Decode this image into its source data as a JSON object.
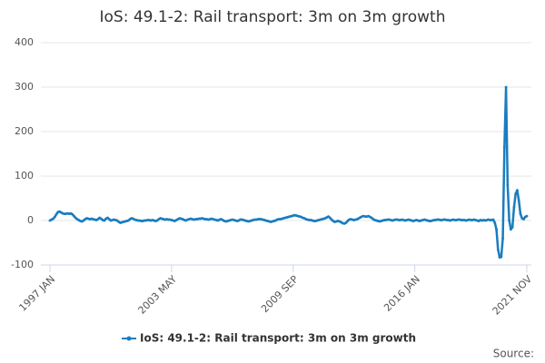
{
  "chart_data": {
    "type": "line",
    "title": "IoS: 49.1-2: Rail transport: 3m on 3m growth",
    "source": "Source:",
    "categories": [
      "1997 JAN",
      null,
      null,
      null,
      null,
      null,
      null,
      null,
      null,
      null,
      null,
      null,
      null,
      null,
      null,
      null,
      null,
      null,
      null,
      null,
      null,
      null,
      null,
      null,
      null,
      null,
      null,
      null,
      null,
      null,
      null,
      null,
      null,
      null,
      null,
      null,
      null,
      null,
      null,
      null,
      null,
      null,
      null,
      null,
      null,
      null,
      null,
      null,
      null,
      null,
      null,
      null,
      null,
      null,
      null,
      null,
      null,
      null,
      null,
      null,
      null,
      null,
      null,
      null,
      null,
      null,
      null,
      null,
      null,
      null,
      null,
      null,
      null,
      null,
      null,
      null,
      "2003 MAY",
      null,
      null,
      null,
      null,
      null,
      null,
      null,
      null,
      null,
      null,
      null,
      null,
      null,
      null,
      null,
      null,
      null,
      null,
      null,
      null,
      null,
      null,
      null,
      null,
      null,
      null,
      null,
      null,
      null,
      null,
      null,
      null,
      null,
      null,
      null,
      null,
      null,
      null,
      null,
      null,
      null,
      null,
      null,
      null,
      null,
      null,
      null,
      null,
      null,
      null,
      null,
      null,
      null,
      null,
      null,
      null,
      null,
      null,
      null,
      null,
      null,
      null,
      null,
      null,
      null,
      null,
      null,
      null,
      null,
      null,
      null,
      null,
      null,
      null,
      null,
      "2009 SEP",
      null,
      null,
      null,
      null,
      null,
      null,
      null,
      null,
      null,
      null,
      null,
      null,
      null,
      null,
      null,
      null,
      null,
      null,
      null,
      null,
      null,
      null,
      null,
      null,
      null,
      null,
      null,
      null,
      null,
      null,
      null,
      null,
      null,
      null,
      null,
      null,
      null,
      null,
      null,
      null,
      null,
      null,
      null,
      null,
      null,
      null,
      null,
      null,
      null,
      null,
      null,
      null,
      null,
      null,
      null,
      null,
      null,
      null,
      null,
      null,
      null,
      null,
      null,
      null,
      null,
      null,
      null,
      null,
      null,
      null,
      null,
      null,
      null,
      null,
      null,
      "2016 JAN",
      null,
      null,
      null,
      null,
      null,
      null,
      null,
      null,
      null,
      null,
      null,
      null,
      null,
      null,
      null,
      null,
      null,
      null,
      null,
      null,
      null,
      null,
      null,
      null,
      null,
      null,
      null,
      null,
      null,
      null,
      null,
      null,
      null,
      null,
      null,
      null,
      null,
      null,
      null,
      null,
      null,
      null,
      null,
      null,
      null,
      null,
      null,
      null,
      null,
      null,
      null,
      null,
      null,
      null,
      null,
      null,
      null,
      null,
      null,
      null,
      null,
      null,
      null,
      null,
      null,
      null,
      null,
      null,
      null,
      "2021 NOV"
    ],
    "series": [
      {
        "name": "IoS: 49.1-2: Rail transport: 3m on 3m growth",
        "color": "#1a7dbf",
        "values": [
          0,
          2,
          4,
          8,
          14,
          19,
          20,
          18,
          16,
          15,
          15,
          16,
          15,
          16,
          14,
          10,
          6,
          3,
          1,
          -1,
          -2,
          0,
          3,
          5,
          4,
          3,
          4,
          3,
          2,
          1,
          3,
          6,
          4,
          1,
          0,
          4,
          6,
          3,
          0,
          1,
          2,
          1,
          0,
          -3,
          -5,
          -4,
          -3,
          -2,
          -1,
          0,
          3,
          5,
          4,
          2,
          1,
          0,
          0,
          -1,
          -1,
          0,
          0,
          1,
          1,
          0,
          1,
          0,
          -1,
          0,
          3,
          5,
          4,
          3,
          2,
          3,
          2,
          2,
          1,
          0,
          -1,
          1,
          3,
          5,
          4,
          3,
          1,
          0,
          2,
          3,
          4,
          3,
          2,
          3,
          3,
          4,
          4,
          5,
          4,
          3,
          3,
          2,
          3,
          4,
          3,
          2,
          1,
          0,
          2,
          3,
          1,
          -1,
          -2,
          -1,
          0,
          1,
          2,
          1,
          0,
          -1,
          0,
          2,
          2,
          1,
          0,
          -1,
          -2,
          -1,
          0,
          1,
          2,
          2,
          3,
          3,
          3,
          2,
          1,
          0,
          -1,
          -2,
          -3,
          -2,
          -1,
          0,
          2,
          3,
          3,
          4,
          5,
          6,
          7,
          8,
          9,
          10,
          11,
          12,
          11,
          10,
          9,
          8,
          6,
          5,
          3,
          2,
          1,
          1,
          0,
          -1,
          -1,
          0,
          1,
          2,
          3,
          4,
          5,
          7,
          9,
          6,
          2,
          -1,
          -3,
          -2,
          -1,
          -2,
          -4,
          -6,
          -7,
          -5,
          -1,
          2,
          3,
          2,
          1,
          2,
          3,
          5,
          7,
          9,
          10,
          9,
          9,
          10,
          8,
          6,
          3,
          1,
          0,
          -1,
          -2,
          -1,
          0,
          1,
          1,
          2,
          2,
          1,
          0,
          1,
          2,
          2,
          1,
          1,
          2,
          1,
          0,
          1,
          2,
          1,
          0,
          -1,
          0,
          1,
          0,
          -1,
          0,
          1,
          2,
          1,
          0,
          -1,
          -1,
          0,
          1,
          1,
          2,
          2,
          1,
          1,
          2,
          2,
          1,
          1,
          0,
          1,
          2,
          1,
          1,
          2,
          2,
          1,
          1,
          1,
          0,
          1,
          2,
          1,
          1,
          2,
          1,
          0,
          -1,
          1,
          0,
          1,
          0,
          1,
          2,
          1,
          1,
          2,
          -5,
          -20,
          -65,
          -83,
          -82,
          -40,
          165,
          300,
          80,
          0,
          -20,
          -15,
          30,
          60,
          68,
          45,
          15,
          5,
          3,
          8,
          10
        ]
      }
    ],
    "ylim": [
      -100,
      400
    ],
    "yticks": [
      -100,
      0,
      100,
      200,
      300,
      400
    ],
    "grid": true
  }
}
